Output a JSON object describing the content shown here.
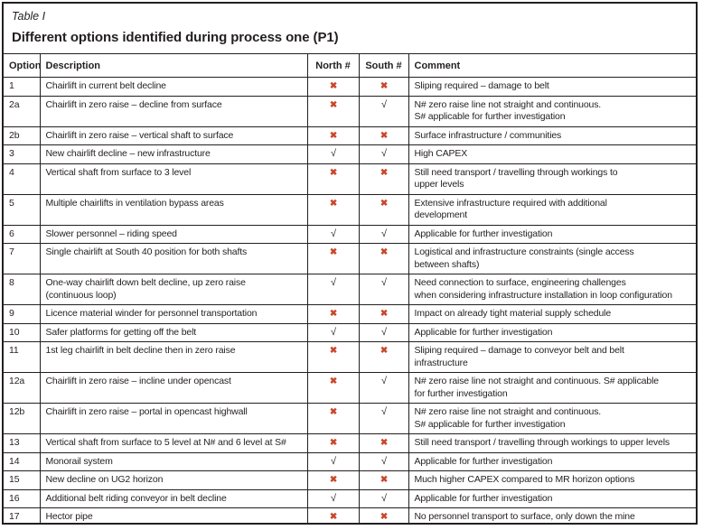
{
  "table": {
    "caption": "Table I",
    "title": "Different options identified during process one (P1)",
    "columns": [
      "Option",
      "Description",
      "North #",
      "South #",
      "Comment"
    ],
    "marks": {
      "yes": "√",
      "no": "✖"
    },
    "colors": {
      "check": "#231f20",
      "cross": "#c8472b"
    },
    "rows": [
      {
        "option": "1",
        "description": "Chairlift in current belt decline",
        "north": "no",
        "south": "no",
        "comment": "Sliping required – damage to belt"
      },
      {
        "option": "2a",
        "description": "Chairlift in zero raise – decline from surface",
        "north": "no",
        "south": "yes",
        "comment": "N# zero raise line not straight and continuous.\nS# applicable for further investigation"
      },
      {
        "option": "2b",
        "description": "Chairlift in zero raise – vertical shaft to surface",
        "north": "no",
        "south": "no",
        "comment": "Surface infrastructure / communities"
      },
      {
        "option": "3",
        "description": "New chairlift decline – new infrastructure",
        "north": "yes",
        "south": "yes",
        "comment": "High CAPEX"
      },
      {
        "option": "4",
        "description": "Vertical shaft from surface to 3 level",
        "north": "no",
        "south": "no",
        "comment": "Still need transport / travelling through workings to\nupper levels"
      },
      {
        "option": "5",
        "description": "Multiple chairlifts in ventilation bypass areas",
        "north": "no",
        "south": "no",
        "comment": "Extensive infrastructure required with additional\ndevelopment"
      },
      {
        "option": "6",
        "description": "Slower personnel – riding speed",
        "north": "yes",
        "south": "yes",
        "comment": "Applicable for further investigation"
      },
      {
        "option": "7",
        "description": "Single chairlift at South 40 position for both shafts",
        "north": "no",
        "south": "no",
        "comment": "Logistical and infrastructure constraints (single access\nbetween shafts)"
      },
      {
        "option": "8",
        "description": "One-way chairlift down belt decline, up zero raise\n(continuous loop)",
        "north": "yes",
        "south": "yes",
        "comment": "Need connection to surface, engineering challenges\nwhen considering infrastructure installation in loop configuration"
      },
      {
        "option": "9",
        "description": "Licence material winder for personnel transportation",
        "north": "no",
        "south": "no",
        "comment": "Impact on already tight material supply schedule"
      },
      {
        "option": "10",
        "description": "Safer platforms for getting off the belt",
        "north": "yes",
        "south": "yes",
        "comment": "Applicable for further investigation"
      },
      {
        "option": "11",
        "description": "1st leg chairlift in belt decline then in zero raise",
        "north": "no",
        "south": "no",
        "comment": "Sliping required – damage to conveyor belt and belt\ninfrastructure"
      },
      {
        "option": "12a",
        "description": "Chairlift in zero raise – incline under opencast",
        "north": "no",
        "south": "yes",
        "comment": "N# zero raise line not straight and continuous. S# applicable\nfor further investigation"
      },
      {
        "option": "12b",
        "description": "Chairlift in zero raise – portal in opencast highwall",
        "north": "no",
        "south": "yes",
        "comment": "N# zero raise line not straight and continuous.\nS# applicable for further investigation"
      },
      {
        "option": "13",
        "description": "Vertical shaft from surface to 5 level at N# and 6 level at S#",
        "north": "no",
        "south": "no",
        "comment": "Still need transport / travelling through workings to upper levels"
      },
      {
        "option": "14",
        "description": "Monorail system",
        "north": "yes",
        "south": "yes",
        "comment": "Applicable for further investigation"
      },
      {
        "option": "15",
        "description": "New decline on UG2 horizon",
        "north": "no",
        "south": "no",
        "comment": "Much higher CAPEX compared to MR horizon options"
      },
      {
        "option": "16",
        "description": "Additional belt riding conveyor in belt decline",
        "north": "yes",
        "south": "yes",
        "comment": "Applicable for further investigation"
      },
      {
        "option": "17",
        "description": "Hector pipe",
        "north": "no",
        "south": "no",
        "comment": "No personnel transport to surface, only down the mine"
      }
    ]
  }
}
